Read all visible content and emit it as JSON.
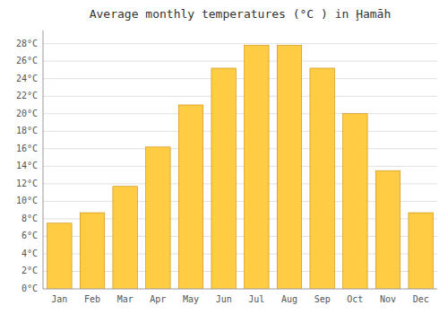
{
  "chart_data": {
    "type": "bar",
    "title": "Average monthly temperatures (°C ) in Ḩamāh",
    "categories": [
      "Jan",
      "Feb",
      "Mar",
      "Apr",
      "May",
      "Jun",
      "Jul",
      "Aug",
      "Sep",
      "Oct",
      "Nov",
      "Dec"
    ],
    "values": [
      7.5,
      8.7,
      11.7,
      16.2,
      21.0,
      25.2,
      27.8,
      27.8,
      25.2,
      20.0,
      13.5,
      8.7
    ],
    "color": "#FFCC44",
    "ylim": [
      0,
      29.5
    ],
    "yticks": [
      {
        "value": 0,
        "label": "0°C"
      },
      {
        "value": 2,
        "label": "2°C"
      },
      {
        "value": 4,
        "label": "4°C"
      },
      {
        "value": 6,
        "label": "6°C"
      },
      {
        "value": 8,
        "label": "8°C"
      },
      {
        "value": 10,
        "label": "10°C"
      },
      {
        "value": 12,
        "label": "12°C"
      },
      {
        "value": 14,
        "label": "14°C"
      },
      {
        "value": 16,
        "label": "16°C"
      },
      {
        "value": 18,
        "label": "18°C"
      },
      {
        "value": 20,
        "label": "20°C"
      },
      {
        "value": 22,
        "label": "22°C"
      },
      {
        "value": 24,
        "label": "24°C"
      },
      {
        "value": 26,
        "label": "26°C"
      },
      {
        "value": 28,
        "label": "28°C"
      }
    ],
    "grid": true
  }
}
